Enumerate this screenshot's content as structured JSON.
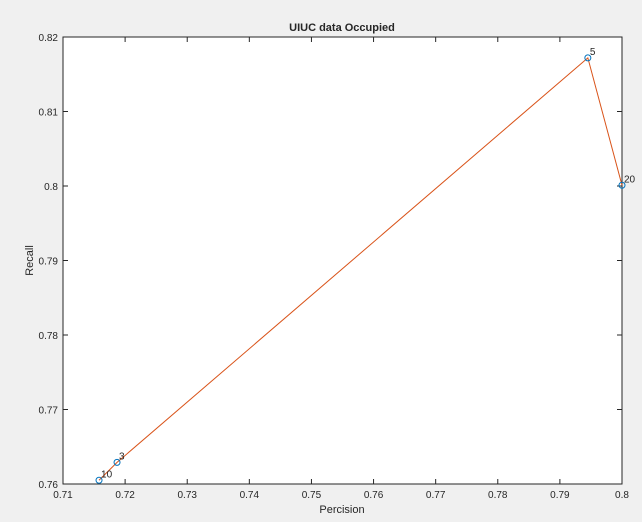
{
  "chart_data": {
    "type": "line",
    "title": "UIUC data Occupied",
    "xlabel": "Percision",
    "ylabel": "Recall",
    "xlim": [
      0.71,
      0.8
    ],
    "ylim": [
      0.76,
      0.82
    ],
    "xticks": [
      0.71,
      0.72,
      0.73,
      0.74,
      0.75,
      0.76,
      0.77,
      0.78,
      0.79,
      0.8
    ],
    "xtick_labels": [
      "0.71",
      "0.72",
      "0.73",
      "0.74",
      "0.75",
      "0.76",
      "0.77",
      "0.78",
      "0.79",
      "0.8"
    ],
    "yticks": [
      0.76,
      0.77,
      0.78,
      0.79,
      0.8,
      0.81,
      0.82
    ],
    "ytick_labels": [
      "0.76",
      "0.77",
      "0.78",
      "0.79",
      "0.8",
      "0.81",
      "0.82"
    ],
    "grid": false,
    "series": [
      {
        "points": [
          {
            "x": 0.7158,
            "y": 0.7605,
            "label": "10"
          },
          {
            "x": 0.7187,
            "y": 0.7629,
            "label": "3"
          },
          {
            "x": 0.7945,
            "y": 0.8172,
            "label": "5"
          },
          {
            "x": 0.8,
            "y": 0.8001,
            "label": "20"
          }
        ],
        "line_color": "#d95319",
        "marker_color": "#0072bd",
        "marker": "circle"
      }
    ]
  }
}
